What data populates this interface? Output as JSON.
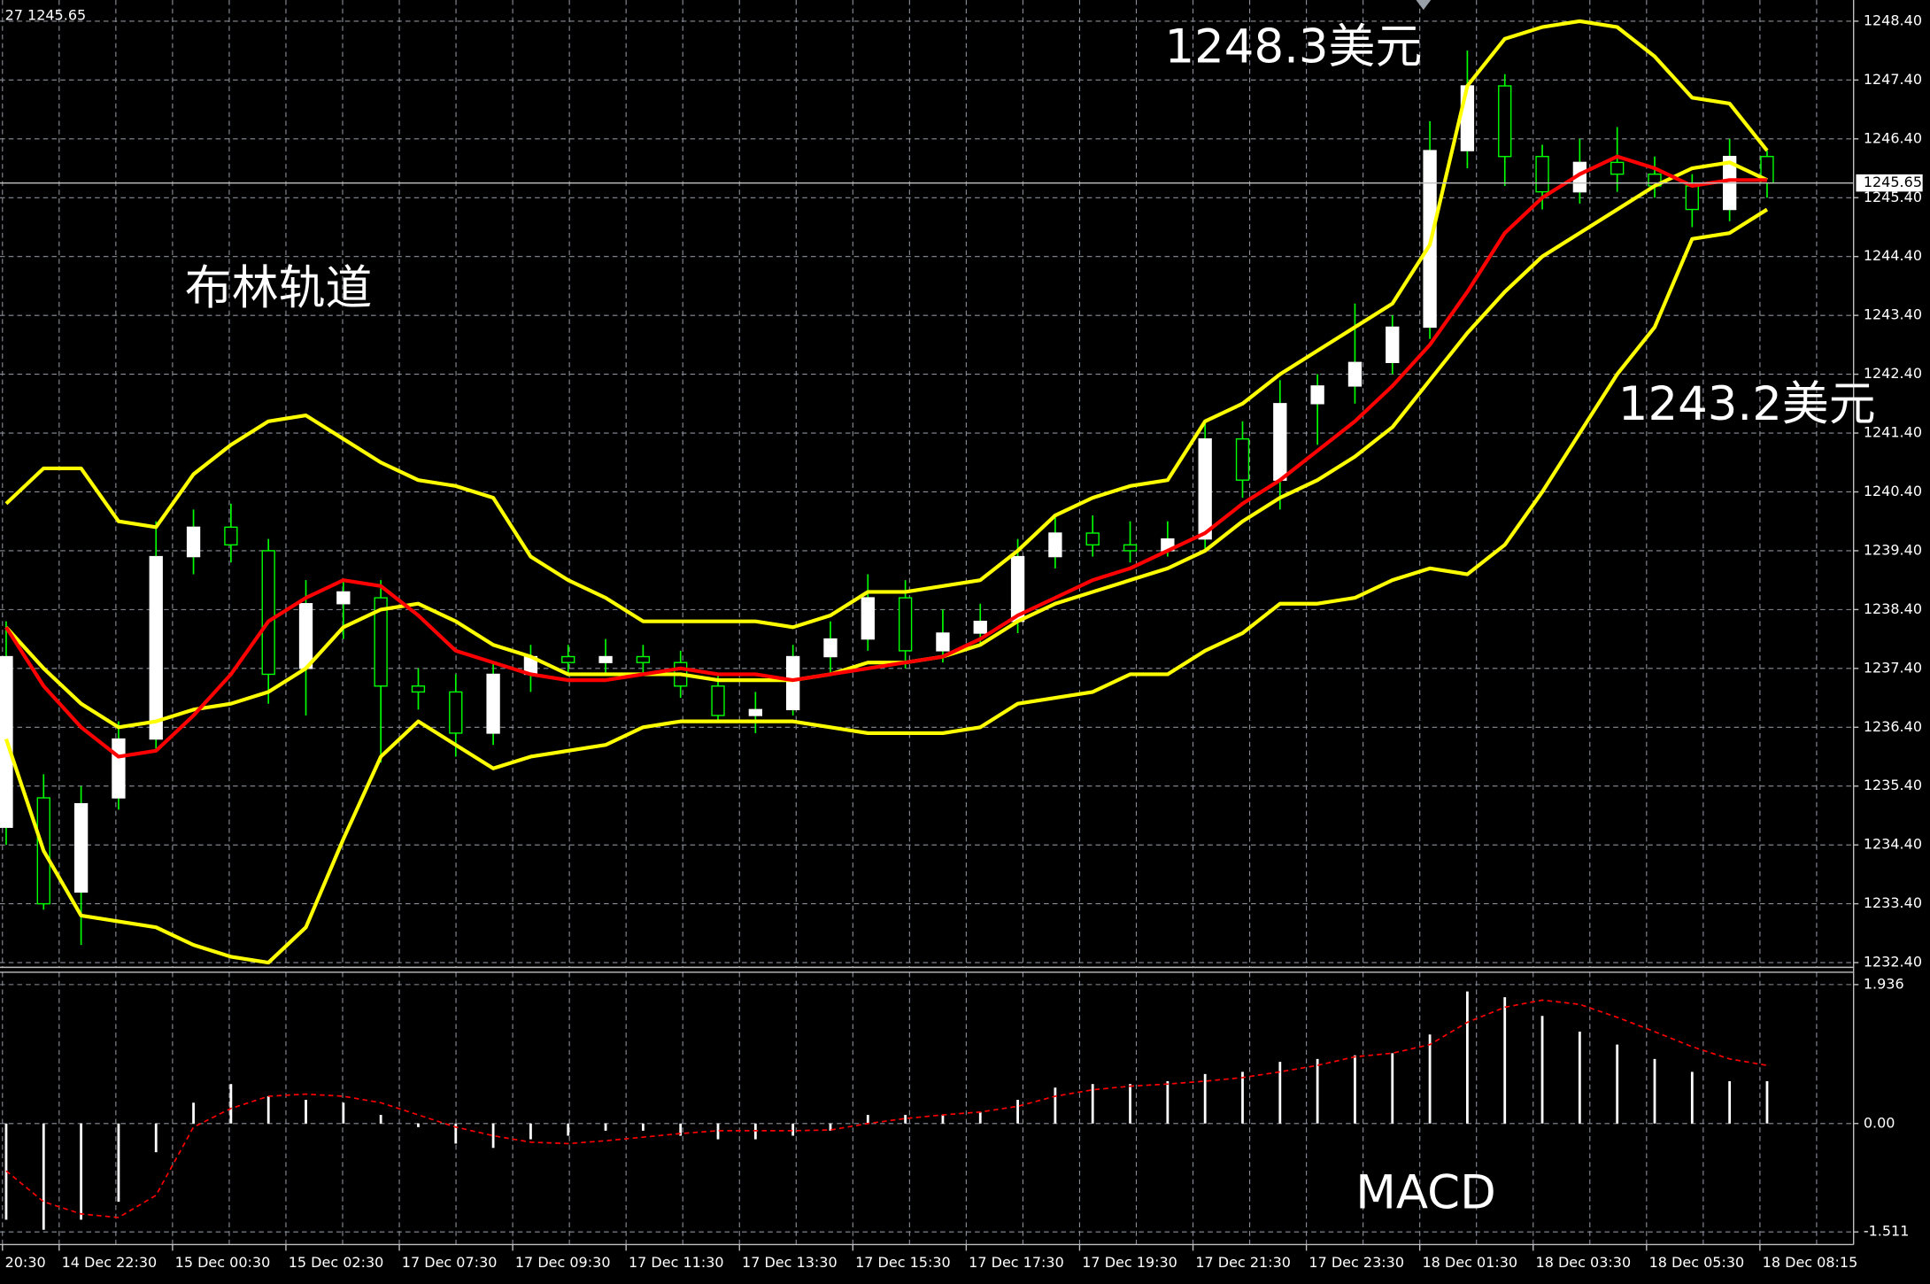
{
  "chart_data": [
    {
      "type": "candlestick",
      "info": "27 1245.65",
      "current_price": {
        "value": 1245.65,
        "label": "1245.65"
      },
      "ylim": [
        1232.32,
        1248.76
      ],
      "yticks": [
        {
          "value": 1248.4,
          "label": "1248.40"
        },
        {
          "value": 1247.4,
          "label": "1247.40"
        },
        {
          "value": 1246.4,
          "label": "1246.40"
        },
        {
          "value": 1245.4,
          "label": "1245.40"
        },
        {
          "value": 1244.4,
          "label": "1244.40"
        },
        {
          "value": 1243.4,
          "label": "1243.40"
        },
        {
          "value": 1242.4,
          "label": "1242.40"
        },
        {
          "value": 1241.4,
          "label": "1241.40"
        },
        {
          "value": 1240.4,
          "label": "1240.40"
        },
        {
          "value": 1239.4,
          "label": "1239.40"
        },
        {
          "value": 1238.4,
          "label": "1238.40"
        },
        {
          "value": 1237.4,
          "label": "1237.40"
        },
        {
          "value": 1236.4,
          "label": "1236.40"
        },
        {
          "value": 1235.4,
          "label": "1235.40"
        },
        {
          "value": 1234.4,
          "label": "1234.40"
        },
        {
          "value": 1233.4,
          "label": "1233.40"
        },
        {
          "value": 1232.4,
          "label": "1232.40"
        }
      ],
      "grid": true,
      "bull_color": "#ffffff",
      "bear_color": "#000000",
      "wick_color": "#00ff00",
      "ohlc": [
        [
          1234.7,
          1238.2,
          1234.4,
          1237.6
        ],
        [
          1235.2,
          1235.6,
          1233.3,
          1233.4
        ],
        [
          1233.6,
          1235.4,
          1232.7,
          1235.1
        ],
        [
          1235.2,
          1236.5,
          1235.0,
          1236.2
        ],
        [
          1236.2,
          1239.9,
          1236.0,
          1239.3
        ],
        [
          1239.3,
          1240.1,
          1239.0,
          1239.8
        ],
        [
          1239.8,
          1240.2,
          1239.2,
          1239.5
        ],
        [
          1239.4,
          1239.6,
          1236.8,
          1237.3
        ],
        [
          1237.4,
          1238.9,
          1236.6,
          1238.5
        ],
        [
          1238.5,
          1238.9,
          1237.9,
          1238.7
        ],
        [
          1238.6,
          1238.9,
          1235.8,
          1237.1
        ],
        [
          1237.1,
          1237.4,
          1236.7,
          1237.0
        ],
        [
          1237.0,
          1237.3,
          1235.9,
          1236.3
        ],
        [
          1236.3,
          1237.5,
          1236.1,
          1237.3
        ],
        [
          1237.3,
          1237.8,
          1237.0,
          1237.6
        ],
        [
          1237.6,
          1237.8,
          1237.3,
          1237.5
        ],
        [
          1237.5,
          1237.9,
          1237.3,
          1237.6
        ],
        [
          1237.6,
          1237.8,
          1237.3,
          1237.5
        ],
        [
          1237.5,
          1237.7,
          1236.9,
          1237.1
        ],
        [
          1237.1,
          1237.3,
          1236.5,
          1236.6
        ],
        [
          1236.6,
          1237.0,
          1236.3,
          1236.7
        ],
        [
          1236.7,
          1237.8,
          1236.6,
          1237.6
        ],
        [
          1237.6,
          1238.2,
          1237.3,
          1237.9
        ],
        [
          1237.9,
          1239.0,
          1237.7,
          1238.6
        ],
        [
          1238.6,
          1238.9,
          1237.4,
          1237.7
        ],
        [
          1237.7,
          1238.4,
          1237.5,
          1238.0
        ],
        [
          1238.0,
          1238.5,
          1237.8,
          1238.2
        ],
        [
          1238.2,
          1239.6,
          1238.0,
          1239.3
        ],
        [
          1239.3,
          1240.0,
          1239.1,
          1239.7
        ],
        [
          1239.7,
          1240.0,
          1239.3,
          1239.5
        ],
        [
          1239.5,
          1239.9,
          1239.2,
          1239.4
        ],
        [
          1239.4,
          1239.9,
          1239.3,
          1239.6
        ],
        [
          1239.6,
          1241.6,
          1239.4,
          1241.3
        ],
        [
          1241.3,
          1241.6,
          1240.3,
          1240.6
        ],
        [
          1240.6,
          1242.3,
          1240.1,
          1241.9
        ],
        [
          1241.9,
          1242.4,
          1241.2,
          1242.2
        ],
        [
          1242.2,
          1243.6,
          1241.9,
          1242.6
        ],
        [
          1242.6,
          1243.4,
          1242.4,
          1243.2
        ],
        [
          1243.2,
          1246.7,
          1243.0,
          1246.2
        ],
        [
          1246.2,
          1247.9,
          1245.9,
          1247.3
        ],
        [
          1247.3,
          1247.5,
          1245.6,
          1246.1
        ],
        [
          1246.1,
          1246.3,
          1245.2,
          1245.5
        ],
        [
          1245.5,
          1246.4,
          1245.3,
          1246.0
        ],
        [
          1246.0,
          1246.6,
          1245.5,
          1245.8
        ],
        [
          1245.8,
          1246.1,
          1245.4,
          1245.6
        ],
        [
          1245.6,
          1245.8,
          1244.9,
          1245.2
        ],
        [
          1245.2,
          1246.4,
          1245.0,
          1246.1
        ],
        [
          1246.1,
          1246.2,
          1245.4,
          1245.65
        ]
      ],
      "lines": [
        {
          "color": "#ffff00",
          "values": [
            1240.2,
            1240.8,
            1240.8,
            1239.9,
            1239.8,
            1240.7,
            1241.2,
            1241.6,
            1241.7,
            1241.3,
            1240.9,
            1240.6,
            1240.5,
            1240.3,
            1239.3,
            1238.9,
            1238.6,
            1238.2,
            1238.2,
            1238.2,
            1238.2,
            1238.1,
            1238.3,
            1238.7,
            1238.7,
            1238.8,
            1238.9,
            1239.4,
            1240.0,
            1240.3,
            1240.5,
            1240.6,
            1241.6,
            1241.9,
            1242.4,
            1242.8,
            1243.2,
            1243.6,
            1244.6,
            1247.3,
            1248.1,
            1248.3,
            1248.4,
            1248.3,
            1247.8,
            1247.1,
            1247.0,
            1246.2
          ]
        },
        {
          "color": "#ffff00",
          "values": [
            1236.2,
            1234.3,
            1233.2,
            1233.1,
            1233.0,
            1232.7,
            1232.5,
            1232.4,
            1233.0,
            1234.5,
            1235.9,
            1236.5,
            1236.1,
            1235.7,
            1235.9,
            1236.0,
            1236.1,
            1236.4,
            1236.5,
            1236.5,
            1236.5,
            1236.5,
            1236.4,
            1236.3,
            1236.3,
            1236.3,
            1236.4,
            1236.8,
            1236.9,
            1237.0,
            1237.3,
            1237.3,
            1237.7,
            1238.0,
            1238.5,
            1238.5,
            1238.6,
            1238.9,
            1239.1,
            1239.0,
            1239.5,
            1240.4,
            1241.4,
            1242.4,
            1243.2,
            1244.7,
            1244.8,
            1245.2
          ]
        },
        {
          "color": "#ffff00",
          "values": [
            1238.1,
            1237.4,
            1236.8,
            1236.4,
            1236.5,
            1236.7,
            1236.8,
            1237.0,
            1237.4,
            1238.1,
            1238.4,
            1238.5,
            1238.2,
            1237.8,
            1237.6,
            1237.3,
            1237.3,
            1237.3,
            1237.3,
            1237.2,
            1237.2,
            1237.2,
            1237.3,
            1237.5,
            1237.5,
            1237.6,
            1237.8,
            1238.2,
            1238.5,
            1238.7,
            1238.9,
            1239.1,
            1239.4,
            1239.9,
            1240.3,
            1240.6,
            1241.0,
            1241.5,
            1242.3,
            1243.1,
            1243.8,
            1244.4,
            1244.8,
            1245.2,
            1245.6,
            1245.9,
            1246.0,
            1245.7
          ]
        },
        {
          "color": "#ff0000",
          "values": [
            1238.1,
            1237.1,
            1236.4,
            1235.9,
            1236.0,
            1236.6,
            1237.3,
            1238.2,
            1238.6,
            1238.9,
            1238.8,
            1238.3,
            1237.7,
            1237.5,
            1237.3,
            1237.2,
            1237.2,
            1237.3,
            1237.4,
            1237.3,
            1237.3,
            1237.2,
            1237.3,
            1237.4,
            1237.5,
            1237.6,
            1237.9,
            1238.3,
            1238.6,
            1238.9,
            1239.1,
            1239.4,
            1239.7,
            1240.2,
            1240.6,
            1241.1,
            1241.6,
            1242.2,
            1242.9,
            1243.8,
            1244.8,
            1245.4,
            1245.8,
            1246.1,
            1245.9,
            1245.6,
            1245.7,
            1245.7
          ]
        }
      ],
      "annotations": [
        "布林轨道",
        "1248.3美元",
        "1243.2美元"
      ],
      "xlabels": [
        "20:30",
        "14 Dec 22:30",
        "15 Dec 00:30",
        "15 Dec 02:30",
        "17 Dec 07:30",
        "17 Dec 09:30",
        "17 Dec 11:30",
        "17 Dec 13:30",
        "17 Dec 15:30",
        "17 Dec 17:30",
        "17 Dec 19:30",
        "17 Dec 21:30",
        "17 Dec 23:30",
        "18 Dec 01:30",
        "18 Dec 03:30",
        "18 Dec 05:30",
        "18 Dec 08:15"
      ]
    },
    {
      "type": "macd",
      "color": "#ffffff",
      "ylim": [
        -1.687,
        2.108
      ],
      "yticks": [
        1.936,
        {
          "value": 0,
          "label": "0.00"
        },
        -1.511
      ],
      "values": [
        -1.34,
        -1.48,
        -1.34,
        -1.09,
        -0.4,
        0.29,
        0.55,
        0.38,
        0.33,
        0.29,
        0.12,
        -0.05,
        -0.28,
        -0.34,
        -0.22,
        -0.17,
        -0.1,
        -0.1,
        -0.17,
        -0.22,
        -0.22,
        -0.17,
        -0.1,
        0.12,
        0.12,
        0.12,
        0.16,
        0.33,
        0.5,
        0.55,
        0.55,
        0.59,
        0.69,
        0.72,
        0.86,
        0.9,
        0.95,
        0.98,
        1.24,
        1.84,
        1.76,
        1.5,
        1.28,
        1.1,
        0.9,
        0.72,
        0.59,
        0.59
      ],
      "signal": {
        "color": "#ff0000",
        "values": [
          -0.66,
          -1.09,
          -1.26,
          -1.31,
          -1.0,
          -0.05,
          0.21,
          0.38,
          0.41,
          0.38,
          0.29,
          0.12,
          -0.05,
          -0.17,
          -0.26,
          -0.28,
          -0.24,
          -0.19,
          -0.14,
          -0.1,
          -0.1,
          -0.1,
          -0.09,
          0.0,
          0.07,
          0.12,
          0.16,
          0.24,
          0.38,
          0.47,
          0.52,
          0.55,
          0.59,
          0.64,
          0.72,
          0.81,
          0.93,
          0.98,
          1.1,
          1.41,
          1.62,
          1.72,
          1.66,
          1.48,
          1.28,
          1.07,
          0.9,
          0.81
        ]
      },
      "annotations": [
        "MACD"
      ]
    }
  ]
}
